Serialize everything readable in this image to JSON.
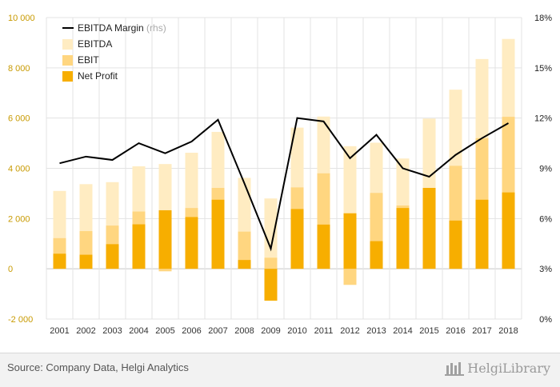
{
  "chart_data": {
    "type": "bar",
    "categories": [
      "2001",
      "2002",
      "2003",
      "2004",
      "2005",
      "2006",
      "2007",
      "2008",
      "2009",
      "2010",
      "2011",
      "2012",
      "2013",
      "2014",
      "2015",
      "2016",
      "2017",
      "2018"
    ],
    "series": [
      {
        "name": "EBITDA",
        "kind": "bar",
        "color": "#ffecc2",
        "values": [
          3100,
          3370,
          3450,
          4080,
          4170,
          4620,
          5450,
          3620,
          2800,
          5620,
          6060,
          4880,
          5020,
          4390,
          5980,
          7130,
          8350,
          9150
        ]
      },
      {
        "name": "EBIT",
        "kind": "bar",
        "color": "#ffd680",
        "values": [
          1220,
          1500,
          1720,
          2280,
          -100,
          2420,
          3220,
          1480,
          440,
          3240,
          3800,
          -640,
          3020,
          2520,
          3220,
          4100,
          5200,
          6050
        ]
      },
      {
        "name": "Net Profit",
        "kind": "bar",
        "color": "#f7ae00",
        "values": [
          600,
          560,
          980,
          1770,
          2330,
          2060,
          2750,
          350,
          -1270,
          2380,
          1760,
          2210,
          1100,
          2420,
          3220,
          1920,
          2750,
          3040
        ]
      },
      {
        "name": "EBITDA Margin",
        "axis": "right",
        "kind": "line",
        "color": "#000000",
        "values": [
          9.3,
          9.7,
          9.5,
          10.5,
          9.9,
          10.6,
          11.9,
          8.1,
          4.2,
          12.0,
          11.8,
          9.6,
          11.0,
          9.0,
          8.5,
          9.8,
          10.8,
          11.7
        ]
      }
    ],
    "legend": {
      "position": "top-left",
      "items": [
        {
          "label": "EBITDA Margin",
          "note": "(rhs)",
          "kind": "line",
          "color": "#000000"
        },
        {
          "label": "EBITDA",
          "kind": "bar",
          "color": "#ffecc2"
        },
        {
          "label": "EBIT",
          "kind": "bar",
          "color": "#ffd680"
        },
        {
          "label": "Net Profit",
          "kind": "bar",
          "color": "#f7ae00"
        }
      ]
    },
    "ylim": [
      -2000,
      10000
    ],
    "y_ticks": [
      "10 000",
      "8 000",
      "6 000",
      "4 000",
      "2 000",
      "0",
      "-2 000"
    ],
    "y_tick_values": [
      10000,
      8000,
      6000,
      4000,
      2000,
      0,
      -2000
    ],
    "y2lim": [
      0,
      18
    ],
    "y2_ticks": [
      "18%",
      "15%",
      "12%",
      "9%",
      "6%",
      "3%",
      "0%"
    ],
    "y2_tick_values": [
      18,
      15,
      12,
      9,
      6,
      3,
      0
    ],
    "grid": true
  },
  "footer": {
    "source": "Source: Company Data, Helgi Analytics",
    "brand": "HelgiLibrary"
  }
}
